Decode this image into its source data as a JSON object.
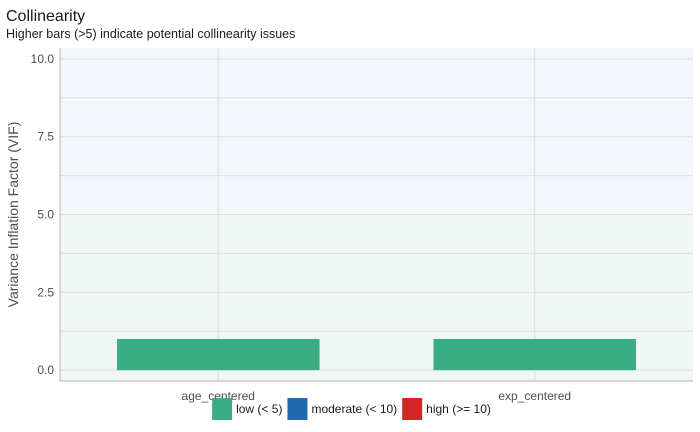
{
  "chart_data": {
    "type": "bar",
    "title": "Collinearity",
    "subtitle": "Higher bars (>5) indicate potential collinearity issues",
    "xlabel": "",
    "ylabel": "Variance Inflation Factor (VIF)",
    "ylim": [
      -0.35,
      10.35
    ],
    "yticks": [
      0,
      2.5,
      5,
      7.5,
      10
    ],
    "ytick_labels": [
      "0.0",
      "2.5",
      "5.0",
      "7.5",
      "10.0"
    ],
    "categories": [
      "age_centered",
      "exp_centered"
    ],
    "values": [
      1.0,
      1.0
    ],
    "bar_classes": [
      "low (< 5)",
      "low (< 5)"
    ],
    "grid": true,
    "background_bands": [
      {
        "from": 0,
        "to": 5,
        "color": "#f1f7f5"
      },
      {
        "from": 5,
        "to": 10,
        "color": "#f3f6fa"
      }
    ],
    "legend": {
      "placement": "bottom",
      "items": [
        {
          "label": "low (< 5)",
          "color": "#3aad84"
        },
        {
          "label": "moderate (< 10)",
          "color": "#1f6aaf"
        },
        {
          "label": "high (>= 10)",
          "color": "#d32626"
        }
      ]
    }
  }
}
